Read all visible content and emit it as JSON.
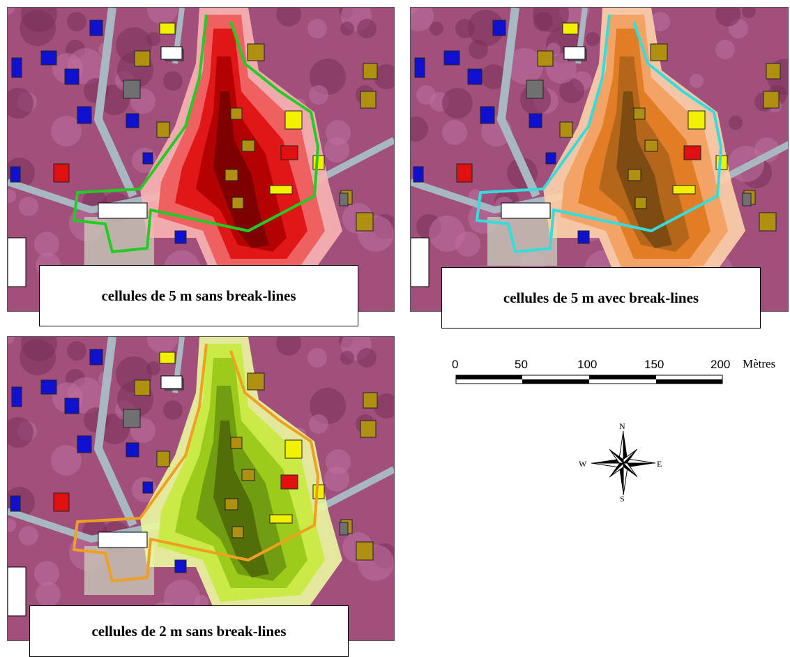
{
  "panels": [
    {
      "caption": "cellules de 5 m sans break-lines",
      "ramp": [
        "#f7b3b3",
        "#ef5a5a",
        "#e01010",
        "#b00000",
        "#7a0000"
      ],
      "outline": "#22cc22"
    },
    {
      "caption": "cellules de 5 m avec break-lines",
      "ramp": [
        "#fbd0a8",
        "#f2a060",
        "#e07a20",
        "#b0651a",
        "#7a4a10"
      ],
      "outline": "#33dddd"
    },
    {
      "caption": "cellules de 2 m sans break-lines",
      "ramp": [
        "#e8f5a0",
        "#c8ea40",
        "#98c818",
        "#6e9a10",
        "#4f6a08"
      ],
      "outline": "#f0a020"
    }
  ],
  "scale": {
    "ticks": [
      "0",
      "50",
      "100",
      "150",
      "200"
    ],
    "unit": "Mètres"
  },
  "compass": {
    "n": "N",
    "s": "S",
    "e": "E",
    "w": "W"
  },
  "colors": {
    "imagery": "#a0507a",
    "road": "#a8b8c0",
    "building_blue": "#1010d0",
    "building_yellow": "#f0f000",
    "building_olive": "#b09010",
    "building_red": "#e01010",
    "building_gray": "#707070"
  }
}
